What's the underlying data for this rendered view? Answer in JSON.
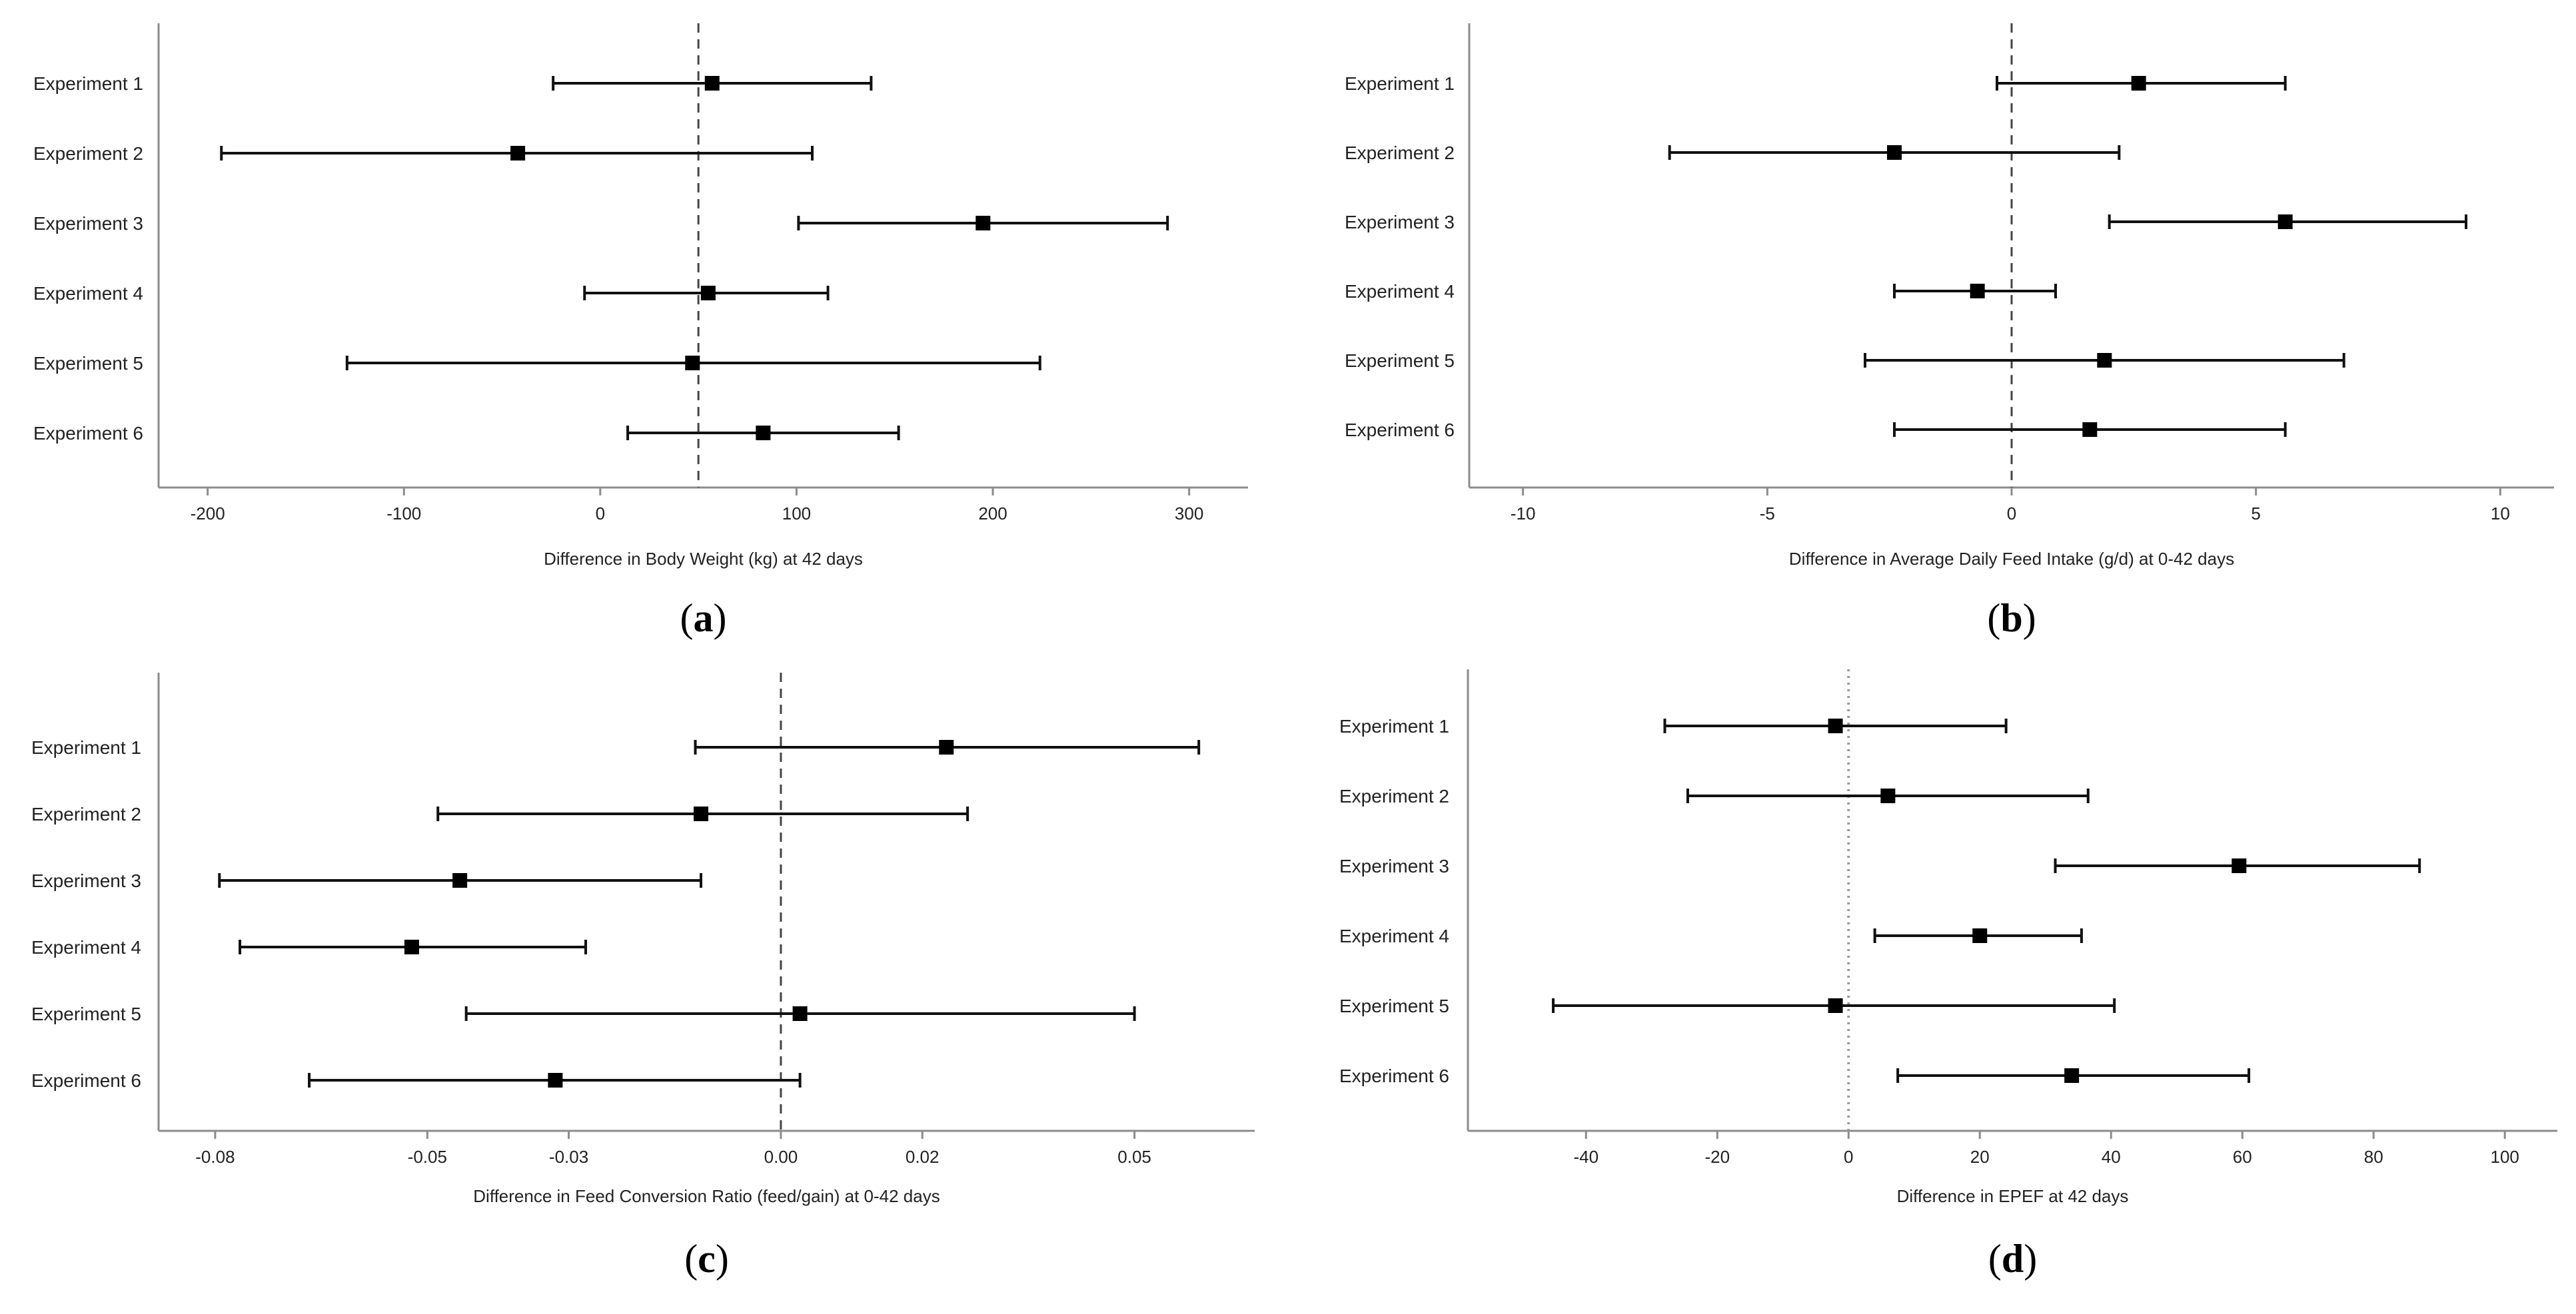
{
  "chart_data": [
    {
      "panel": "(a)",
      "panel_letter": "a",
      "type": "forest",
      "xlabel": "Difference in Body Weight (kg) at 42 days",
      "xlim": [
        -225,
        330
      ],
      "xticks": [
        -200,
        -100,
        0,
        100,
        200,
        300
      ],
      "xtick_labels": [
        "-200",
        "-100",
        "0",
        "100",
        "200",
        "300"
      ],
      "reference_line": 50,
      "reference_style": "dashed",
      "categories": [
        "Experiment 1",
        "Experiment 2",
        "Experiment 3",
        "Experiment 4",
        "Experiment 5",
        "Experiment 6"
      ],
      "estimates": [
        57,
        -42,
        195,
        55,
        47,
        83
      ],
      "lower": [
        -24,
        -193,
        101,
        -8,
        -129,
        14
      ],
      "upper": [
        138,
        108,
        289,
        116,
        224,
        152
      ]
    },
    {
      "panel": "(b)",
      "panel_letter": "b",
      "type": "forest",
      "xlabel": "Difference in Average Daily Feed Intake (g/d) at 0-42 days",
      "xlim": [
        -11.1,
        11.1
      ],
      "xticks": [
        -10,
        -5,
        0,
        5,
        10
      ],
      "xtick_labels": [
        "-10",
        "-5",
        "0",
        "5",
        "10"
      ],
      "reference_line": 0,
      "reference_style": "dashed",
      "categories": [
        "Experiment 1",
        "Experiment 2",
        "Experiment 3",
        "Experiment 4",
        "Experiment 5",
        "Experiment 6"
      ],
      "estimates": [
        2.6,
        -2.4,
        5.6,
        -0.7,
        1.9,
        1.6
      ],
      "lower": [
        -0.3,
        -7.0,
        2.0,
        -2.4,
        -3.0,
        -2.4
      ],
      "upper": [
        5.6,
        2.2,
        9.3,
        0.9,
        6.8,
        5.6
      ]
    },
    {
      "panel": "(c)",
      "panel_letter": "c",
      "type": "forest",
      "xlabel": "Difference in Feed Conversion Ratio (feed/gain) at 0-42 days",
      "xlim": [
        -0.088,
        0.067
      ],
      "xticks": [
        -0.08,
        -0.05,
        -0.03,
        0.0,
        0.02,
        0.05
      ],
      "xtick_labels": [
        "-0.08",
        "-0.05",
        "-0.03",
        "0.00",
        "0.02",
        "0.05"
      ],
      "reference_line": 0.0,
      "reference_style": "dashed",
      "categories": [
        "Experiment 1",
        "Experiment 2",
        "Experiment 3",
        "Experiment 4",
        "Experiment 5",
        "Experiment 6"
      ],
      "estimates": [
        0.0234,
        -0.0113,
        -0.0454,
        -0.0522,
        0.0027,
        -0.0319
      ],
      "lower": [
        -0.0121,
        -0.0485,
        -0.0794,
        -0.0765,
        -0.0445,
        -0.0667
      ],
      "upper": [
        0.0591,
        0.0264,
        -0.0113,
        -0.0276,
        0.05,
        0.0027
      ]
    },
    {
      "panel": "(d)",
      "panel_letter": "d",
      "type": "forest",
      "xlabel": "Difference in EPEF at 42 days",
      "xlim": [
        -58,
        108
      ],
      "xticks": [
        -40,
        -20,
        0,
        20,
        40,
        60,
        80,
        100
      ],
      "xtick_labels": [
        "-40",
        "-20",
        "0",
        "20",
        "40",
        "60",
        "80",
        "100"
      ],
      "reference_line": 0,
      "reference_style": "dotted",
      "categories": [
        "Experiment 1",
        "Experiment 2",
        "Experiment 3",
        "Experiment 4",
        "Experiment 5",
        "Experiment 6"
      ],
      "estimates": [
        -2,
        6,
        59.5,
        20,
        -2,
        34
      ],
      "lower": [
        -28,
        -24.5,
        31.5,
        4,
        -45,
        7.5
      ],
      "upper": [
        24,
        36.5,
        87,
        35.5,
        40.5,
        61
      ]
    }
  ]
}
